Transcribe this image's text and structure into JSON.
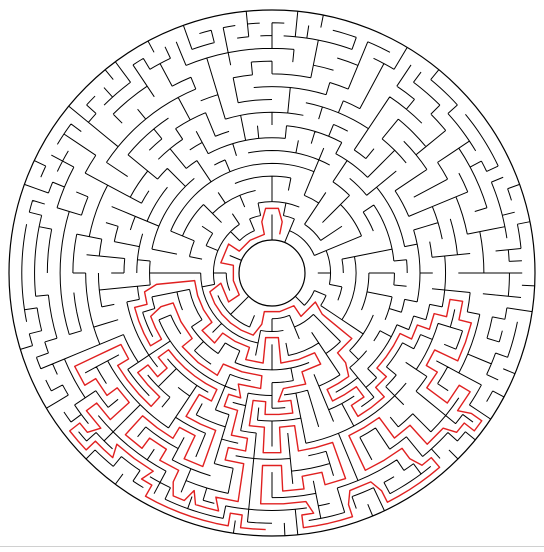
{
  "maze": {
    "kind": "circular-maze",
    "ring_count": 18,
    "wall_color": "#000000",
    "solution_color": "#e02020",
    "background_color": "#ffffff",
    "has_center_hole": true,
    "shows_solution_path": true
  }
}
